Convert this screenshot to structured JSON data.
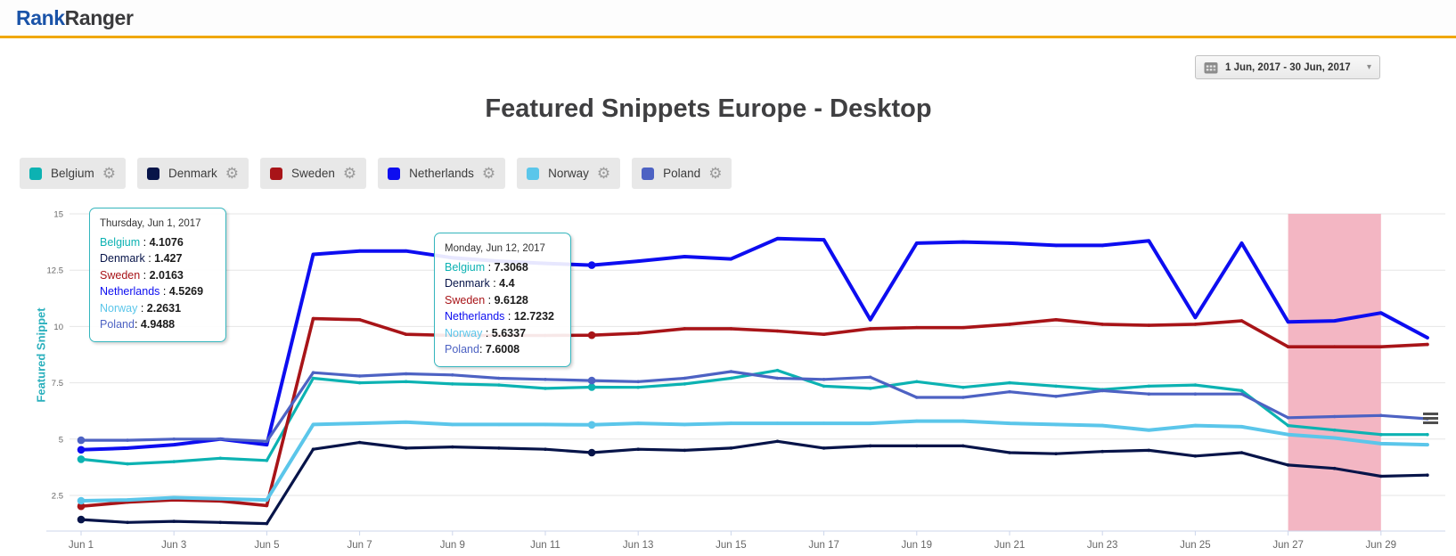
{
  "header": {
    "logo_part1": "Rank",
    "logo_part2": "Ranger"
  },
  "toolbar": {
    "date_range": "1 Jun, 2017 - 30 Jun, 2017"
  },
  "title": "Featured Snippets Europe - Desktop",
  "icons": {
    "gear_glyph": "⚙",
    "dropdown_arrow_glyph": "▾"
  },
  "chart_data": {
    "type": "line",
    "title": "Featured Snippets Europe - Desktop",
    "xlabel": "",
    "ylabel": "Featured Snippet",
    "y_min": 0.9,
    "y_max": 15,
    "y_ticks": [
      2.5,
      5,
      7.5,
      10,
      12.5,
      15
    ],
    "grid": true,
    "legend_position": "top-left-buttons",
    "x_ticks": [
      {
        "day": 1,
        "label": "Jun 1"
      },
      {
        "day": 3,
        "label": "Jun 3"
      },
      {
        "day": 5,
        "label": "Jun 5"
      },
      {
        "day": 7,
        "label": "Jun 7"
      },
      {
        "day": 9,
        "label": "Jun 9"
      },
      {
        "day": 11,
        "label": "Jun 11"
      },
      {
        "day": 13,
        "label": "Jun 13"
      },
      {
        "day": 15,
        "label": "Jun 15"
      },
      {
        "day": 17,
        "label": "Jun 17"
      },
      {
        "day": 19,
        "label": "Jun 19"
      },
      {
        "day": 21,
        "label": "Jun 21"
      },
      {
        "day": 23,
        "label": "Jun 23"
      },
      {
        "day": 25,
        "label": "Jun 25"
      },
      {
        "day": 27,
        "label": "Jun 27"
      },
      {
        "day": 29,
        "label": "Jun 29"
      }
    ],
    "highlight_band": {
      "from_day": 27,
      "to_day": 29,
      "color": "#f3b6c3"
    },
    "hover_marker_days": [
      1,
      12
    ],
    "series": [
      {
        "name": "Belgium",
        "color": "#0cb2b2",
        "line_width": 3.2,
        "values": [
          4.1076,
          3.9,
          4.0,
          4.15,
          4.05,
          7.7,
          7.5,
          7.55,
          7.45,
          7.4,
          7.25,
          7.3068,
          7.3,
          7.45,
          7.7,
          8.05,
          7.35,
          7.25,
          7.55,
          7.3,
          7.5,
          7.35,
          7.2,
          7.35,
          7.4,
          7.15,
          5.6,
          5.4,
          5.2,
          5.2
        ]
      },
      {
        "name": "Denmark",
        "color": "#071449",
        "line_width": 3.2,
        "values": [
          1.427,
          1.3,
          1.35,
          1.3,
          1.25,
          4.55,
          4.85,
          4.6,
          4.65,
          4.6,
          4.55,
          4.4,
          4.55,
          4.5,
          4.6,
          4.9,
          4.6,
          4.7,
          4.7,
          4.7,
          4.4,
          4.35,
          4.45,
          4.5,
          4.25,
          4.4,
          3.85,
          3.7,
          3.35,
          3.4
        ]
      },
      {
        "name": "Sweden",
        "color": "#a81418",
        "line_width": 3.6,
        "values": [
          2.0163,
          2.2,
          2.3,
          2.25,
          2.05,
          10.35,
          10.3,
          9.65,
          9.6,
          9.6,
          9.6,
          9.6128,
          9.7,
          9.9,
          9.9,
          9.8,
          9.65,
          9.9,
          9.95,
          9.95,
          10.1,
          10.3,
          10.1,
          10.05,
          10.1,
          10.25,
          9.1,
          9.1,
          9.1,
          9.2
        ]
      },
      {
        "name": "Netherlands",
        "color": "#0d0df0",
        "line_width": 4,
        "values": [
          4.5269,
          4.6,
          4.75,
          5.0,
          4.75,
          13.2,
          13.35,
          13.35,
          13.05,
          12.9,
          12.8,
          12.7232,
          12.9,
          13.1,
          13.0,
          13.9,
          13.85,
          10.3,
          13.7,
          13.75,
          13.7,
          13.6,
          13.6,
          13.8,
          10.4,
          13.7,
          10.2,
          10.25,
          10.6,
          9.5
        ]
      },
      {
        "name": "Norway",
        "color": "#5bc6ea",
        "line_width": 4,
        "values": [
          2.2631,
          2.3,
          2.4,
          2.35,
          2.3,
          5.65,
          5.7,
          5.75,
          5.65,
          5.65,
          5.65,
          5.6337,
          5.7,
          5.65,
          5.7,
          5.7,
          5.7,
          5.7,
          5.8,
          5.8,
          5.7,
          5.65,
          5.6,
          5.4,
          5.6,
          5.55,
          5.2,
          5.05,
          4.8,
          4.75
        ]
      },
      {
        "name": "Poland",
        "color": "#4d62c3",
        "line_width": 3.2,
        "values": [
          4.9488,
          4.95,
          5.0,
          5.0,
          4.9,
          7.95,
          7.8,
          7.9,
          7.85,
          7.7,
          7.65,
          7.6008,
          7.55,
          7.7,
          8.0,
          7.7,
          7.65,
          7.75,
          6.85,
          6.85,
          7.1,
          6.9,
          7.15,
          7.0,
          7.0,
          7.0,
          5.95,
          6.0,
          6.05,
          5.9
        ]
      }
    ],
    "tooltips": [
      {
        "date_label": "Thursday, Jun 1, 2017",
        "day": 1,
        "rows": [
          {
            "name": "Belgium",
            "sep": " : ",
            "value": "4.1076"
          },
          {
            "name": "Denmark",
            "sep": " : ",
            "value": "1.427"
          },
          {
            "name": "Sweden",
            "sep": " : ",
            "value": "2.0163"
          },
          {
            "name": "Netherlands",
            "sep": " : ",
            "value": "4.5269"
          },
          {
            "name": "Norway",
            "sep": " : ",
            "value": "2.2631"
          },
          {
            "name": "Poland",
            "sep": ": ",
            "value": "4.9488"
          }
        ]
      },
      {
        "date_label": "Monday, Jun 12, 2017",
        "day": 12,
        "rows": [
          {
            "name": "Belgium",
            "sep": " : ",
            "value": "7.3068"
          },
          {
            "name": "Denmark",
            "sep": " : ",
            "value": "4.4"
          },
          {
            "name": "Sweden",
            "sep": " : ",
            "value": "9.6128"
          },
          {
            "name": "Netherlands",
            "sep": " : ",
            "value": "12.7232"
          },
          {
            "name": "Norway",
            "sep": " : ",
            "value": "5.6337"
          },
          {
            "name": "Poland",
            "sep": ": ",
            "value": "7.6008"
          }
        ]
      }
    ]
  }
}
